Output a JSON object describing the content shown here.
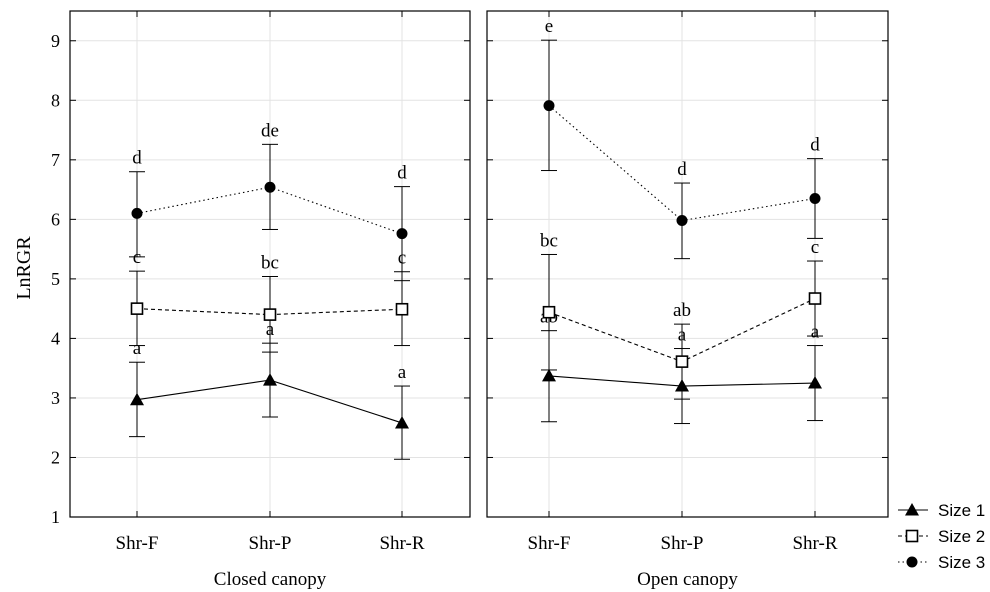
{
  "chart_data": {
    "type": "line",
    "ylabel": "LnRGR",
    "ylim": [
      1,
      9.5
    ],
    "yticks": [
      1,
      2,
      3,
      4,
      5,
      6,
      7,
      8,
      9
    ],
    "grid": true,
    "legend_position": "bottom-right",
    "series_meta": [
      {
        "name": "Size 1",
        "marker": "filled-triangle",
        "line": "solid",
        "color": "#000000"
      },
      {
        "name": "Size 2",
        "marker": "open-square",
        "line": "dashed",
        "color": "#000000"
      },
      {
        "name": "Size 3",
        "marker": "filled-circle",
        "line": "dotted",
        "color": "#000000"
      }
    ],
    "panels": [
      {
        "xlabel": "Closed canopy",
        "categories": [
          "Shr-F",
          "Shr-P",
          "Shr-R"
        ],
        "series": [
          {
            "name": "Size 1",
            "values": [
              2.97,
              3.3,
              2.58
            ],
            "lower": [
              2.35,
              2.68,
              1.97
            ],
            "upper": [
              3.6,
              3.92,
              3.2
            ],
            "labels": [
              "a",
              "a",
              "a"
            ]
          },
          {
            "name": "Size 2",
            "values": [
              4.5,
              4.4,
              4.49
            ],
            "lower": [
              3.88,
              3.77,
              3.88
            ],
            "upper": [
              5.13,
              5.04,
              5.12
            ],
            "labels": [
              "c",
              "bc",
              "c"
            ]
          },
          {
            "name": "Size 3",
            "values": [
              6.1,
              6.54,
              5.76
            ],
            "lower": [
              5.37,
              5.83,
              4.97
            ],
            "upper": [
              6.8,
              7.26,
              6.55
            ],
            "labels": [
              "d",
              "de",
              "d"
            ]
          }
        ]
      },
      {
        "xlabel": "Open canopy",
        "categories": [
          "Shr-F",
          "Shr-P",
          "Shr-R"
        ],
        "series": [
          {
            "name": "Size 1",
            "values": [
              3.37,
              3.2,
              3.25
            ],
            "lower": [
              2.6,
              2.57,
              2.62
            ],
            "upper": [
              4.13,
              3.83,
              3.88
            ],
            "labels": [
              "ab",
              "a",
              "a"
            ]
          },
          {
            "name": "Size 2",
            "values": [
              4.44,
              3.61,
              4.67
            ],
            "lower": [
              3.47,
              2.98,
              4.04
            ],
            "upper": [
              5.41,
              4.24,
              5.3
            ],
            "labels": [
              "bc",
              "ab",
              "c"
            ]
          },
          {
            "name": "Size 3",
            "values": [
              7.91,
              5.98,
              6.35
            ],
            "lower": [
              6.82,
              5.34,
              5.68
            ],
            "upper": [
              9.01,
              6.61,
              7.02
            ],
            "labels": [
              "e",
              "d",
              "d"
            ]
          }
        ]
      }
    ]
  }
}
